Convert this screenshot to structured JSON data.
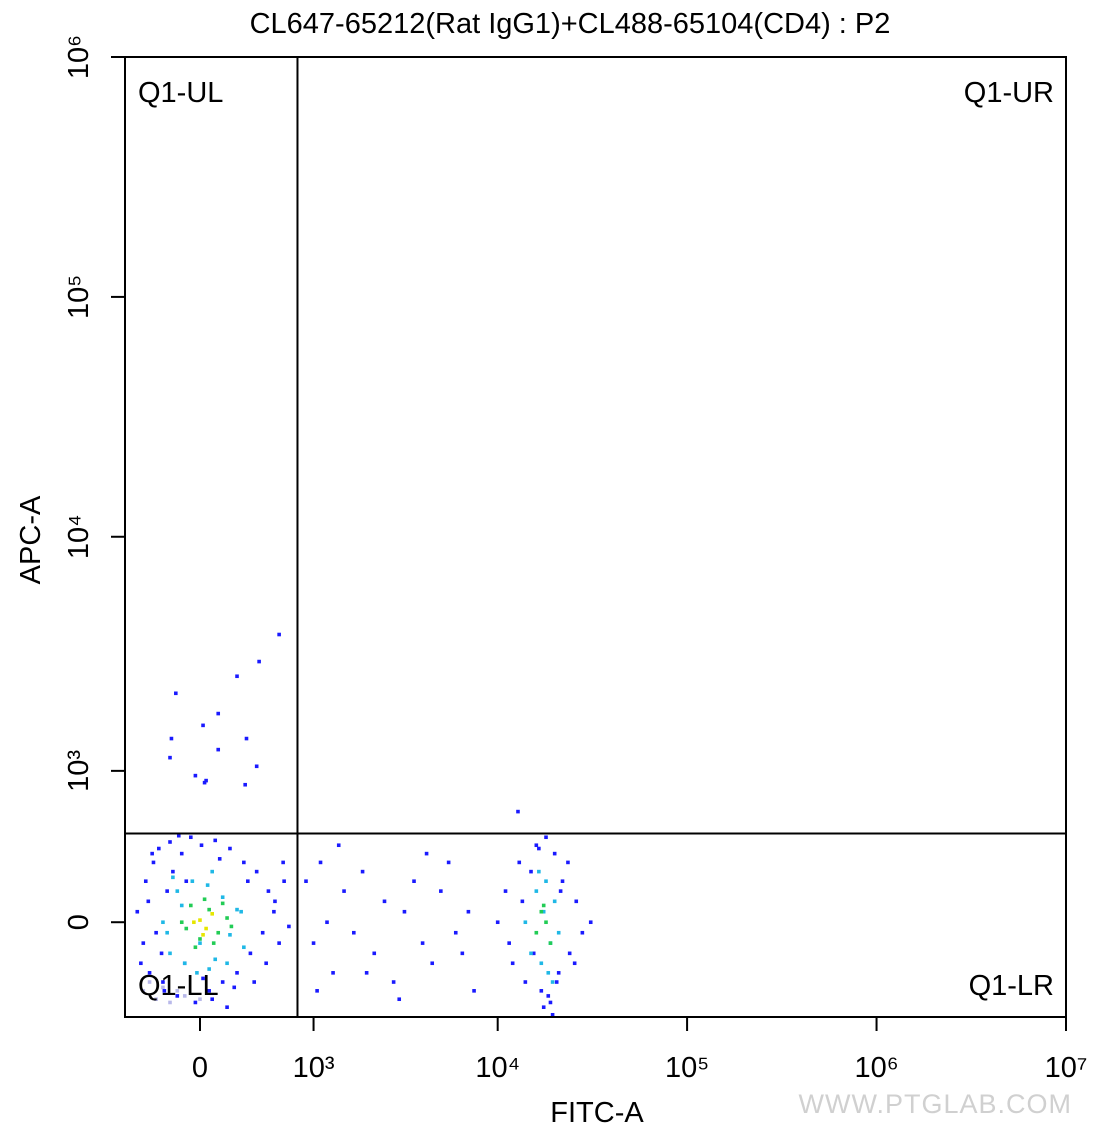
{
  "chart_data": {
    "type": "scatter",
    "title": "CL647-65212(Rat IgG1)+CL488-65104(CD4) : P2",
    "x_label": "FITC-A",
    "y_label": "APC-A",
    "xscale": "biexponential",
    "yscale": "biexponential",
    "xlim": [
      -560,
      10000000
    ],
    "ylim": [
      -515,
      1000000
    ],
    "xticks": [
      0,
      {
        "value": 1000,
        "label": "10³"
      },
      {
        "value": 10000,
        "label": "10⁴"
      },
      {
        "value": 100000,
        "label": "10⁵"
      },
      {
        "value": 1000000,
        "label": "10⁶"
      },
      {
        "value": 10000000,
        "label": "10⁷"
      }
    ],
    "yticks": [
      0,
      {
        "value": 1000,
        "label": "10³"
      },
      {
        "value": 10000,
        "label": "10⁴"
      },
      {
        "value": 100000,
        "label": "10⁵"
      },
      {
        "value": 1000000,
        "label": "10⁶"
      }
    ],
    "gate": {
      "x": 796,
      "y": 474
    },
    "quadrants": {
      "upper_left": "Q1-UL",
      "upper_right": "Q1-UR",
      "lower_left": "Q1-LL",
      "lower_right": "Q1-LR"
    },
    "watermark": "WWW.PTGLAB.COM",
    "series": [
      {
        "color": "#b9b9ea",
        "x": [
          -400,
          -300,
          -200,
          -100,
          0,
          -350,
          -250,
          -150
        ],
        "y": [
          -350,
          -400,
          -420,
          -380,
          -400,
          -300,
          -330,
          -350
        ]
      },
      {
        "color": "#1a1aff",
        "x": [
          -450,
          -400,
          -380,
          -350,
          -320,
          -300,
          -280,
          -250,
          -220,
          -200,
          -150,
          -120,
          -100,
          -60,
          -30,
          10,
          60,
          100,
          150,
          200,
          250,
          300,
          350,
          400,
          450,
          500,
          550,
          600,
          650,
          700,
          -420,
          -360,
          -260,
          -180,
          -90,
          20,
          130,
          230,
          330,
          480,
          560,
          640,
          -330,
          -240,
          -140,
          80,
          180,
          380
        ],
        "y": [
          50,
          -100,
          200,
          -250,
          300,
          -50,
          380,
          -300,
          150,
          420,
          -380,
          350,
          -200,
          450,
          -420,
          400,
          -350,
          430,
          -300,
          380,
          -250,
          300,
          -150,
          250,
          -50,
          150,
          50,
          -100,
          200,
          -20,
          -200,
          100,
          -150,
          250,
          200,
          -280,
          320,
          -330,
          200,
          -200,
          100,
          300,
          350,
          -350,
          460,
          -400,
          -450,
          -300
        ]
      },
      {
        "color": "#1a1aff",
        "x": [
          -160,
          20,
          120,
          250,
          420,
          600,
          -190,
          -200,
          -30,
          40,
          120,
          320,
          400,
          30,
          310
        ],
        "y": [
          2200,
          1600,
          1800,
          2600,
          3000,
          3900,
          1400,
          1150,
          950,
          900,
          1250,
          1400,
          1050,
          880,
          860
        ]
      },
      {
        "color": "#1a1aff",
        "x": [
          900,
          1000,
          1100,
          1200,
          1300,
          1500,
          1700,
          1900,
          2200,
          2500,
          2800,
          3200,
          3600,
          4000,
          4500,
          5000,
          5500,
          6000,
          6500,
          7000,
          7500,
          1050,
          1400,
          2000,
          3000,
          4200,
          12800
        ],
        "y": [
          200,
          -100,
          300,
          0,
          -250,
          150,
          -50,
          250,
          -150,
          100,
          -300,
          50,
          200,
          -100,
          -200,
          150,
          300,
          -50,
          -150,
          50,
          -350,
          -350,
          400,
          -250,
          -400,
          350,
          630
        ]
      },
      {
        "color": "#1a1aff",
        "x": [
          10000,
          11000,
          12000,
          13000,
          14000,
          15000,
          16000,
          17000,
          18000,
          19000,
          20000,
          21000,
          22000,
          24000,
          26000,
          28000,
          31000,
          11500,
          13500,
          15500,
          17500,
          19500,
          21500,
          23500,
          25500,
          16500,
          18500,
          20500
        ],
        "y": [
          0,
          150,
          -200,
          300,
          -300,
          250,
          400,
          -350,
          450,
          -420,
          350,
          -250,
          200,
          -150,
          100,
          -50,
          0,
          -100,
          100,
          -150,
          -450,
          -500,
          150,
          300,
          -200,
          380,
          -380,
          -300
        ]
      },
      {
        "color": "#1fb8e6",
        "x": [
          -250,
          -200,
          -150,
          -100,
          -50,
          0,
          50,
          100,
          150,
          200,
          250,
          300,
          -220,
          -120,
          -20,
          80,
          180,
          280,
          -180,
          60
        ],
        "y": [
          0,
          -150,
          150,
          -200,
          200,
          -100,
          180,
          -180,
          120,
          -60,
          60,
          -120,
          -50,
          80,
          -250,
          250,
          -200,
          50,
          220,
          -230
        ]
      },
      {
        "color": "#1fb8e6",
        "x": [
          14000,
          15000,
          16000,
          17000,
          18000,
          19000,
          20000,
          21000,
          16500,
          18500,
          17500,
          19500
        ],
        "y": [
          0,
          -150,
          150,
          -200,
          200,
          -100,
          100,
          -50,
          250,
          -250,
          50,
          -300
        ]
      },
      {
        "color": "#22cc55",
        "x": [
          -120,
          -60,
          0,
          60,
          120,
          180,
          -90,
          30,
          150,
          -30,
          90,
          210
        ],
        "y": [
          0,
          80,
          -80,
          60,
          -50,
          20,
          -30,
          110,
          90,
          -120,
          -100,
          -20
        ]
      },
      {
        "color": "#22cc55",
        "x": [
          16000,
          17000,
          18000,
          19000,
          17500
        ],
        "y": [
          -50,
          50,
          0,
          -100,
          80
        ]
      },
      {
        "color": "#e6e600",
        "x": [
          0,
          40,
          80,
          -40,
          20
        ],
        "y": [
          10,
          -30,
          40,
          0,
          -60
        ]
      }
    ]
  }
}
